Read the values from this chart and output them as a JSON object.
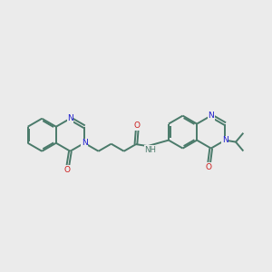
{
  "background_color": "#ebebeb",
  "bond_color": "#4a7a6a",
  "N_color": "#1a1acc",
  "O_color": "#cc1a1a",
  "line_width": 1.4,
  "figsize": [
    3.0,
    3.0
  ],
  "dpi": 100,
  "xlim": [
    0,
    12
  ],
  "ylim": [
    2,
    8
  ]
}
